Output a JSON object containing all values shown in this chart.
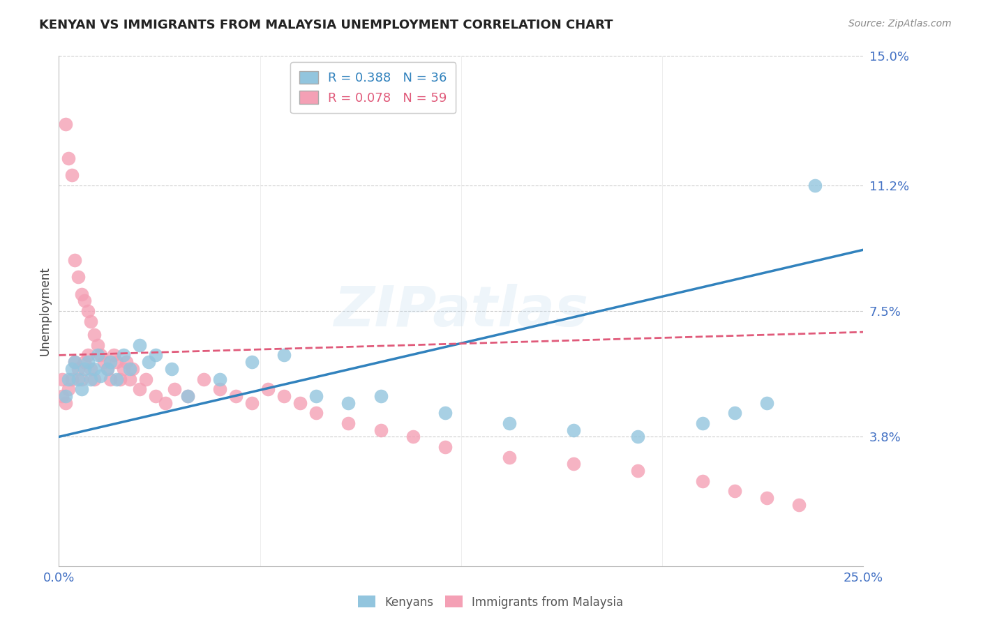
{
  "title": "KENYAN VS IMMIGRANTS FROM MALAYSIA UNEMPLOYMENT CORRELATION CHART",
  "source": "Source: ZipAtlas.com",
  "ylabel_label": "Unemployment",
  "x_min": 0.0,
  "x_max": 0.25,
  "y_min": 0.0,
  "y_max": 0.15,
  "ytick_labels": [
    "3.8%",
    "7.5%",
    "11.2%",
    "15.0%"
  ],
  "ytick_values": [
    0.038,
    0.075,
    0.112,
    0.15
  ],
  "kenyan_R": 0.388,
  "kenyan_N": 36,
  "malaysia_R": 0.078,
  "malaysia_N": 59,
  "kenyan_color": "#92c5de",
  "malaysia_color": "#f4a0b5",
  "kenyan_line_color": "#3182bd",
  "malaysia_line_color": "#e05a7a",
  "watermark": "ZIPatlas",
  "background_color": "#ffffff",
  "kenyan_x": [
    0.002,
    0.003,
    0.004,
    0.005,
    0.006,
    0.007,
    0.008,
    0.009,
    0.01,
    0.011,
    0.012,
    0.013,
    0.015,
    0.016,
    0.018,
    0.02,
    0.022,
    0.025,
    0.028,
    0.03,
    0.035,
    0.04,
    0.05,
    0.06,
    0.07,
    0.08,
    0.09,
    0.1,
    0.12,
    0.14,
    0.16,
    0.18,
    0.2,
    0.21,
    0.22,
    0.235
  ],
  "kenyan_y": [
    0.05,
    0.055,
    0.058,
    0.06,
    0.055,
    0.052,
    0.058,
    0.06,
    0.055,
    0.058,
    0.062,
    0.056,
    0.058,
    0.06,
    0.055,
    0.062,
    0.058,
    0.065,
    0.06,
    0.062,
    0.058,
    0.05,
    0.055,
    0.06,
    0.062,
    0.05,
    0.048,
    0.05,
    0.045,
    0.042,
    0.04,
    0.038,
    0.042,
    0.045,
    0.048,
    0.112
  ],
  "malaysia_x": [
    0.001,
    0.002,
    0.003,
    0.004,
    0.005,
    0.006,
    0.007,
    0.008,
    0.009,
    0.01,
    0.011,
    0.012,
    0.013,
    0.014,
    0.015,
    0.016,
    0.017,
    0.018,
    0.019,
    0.02,
    0.021,
    0.022,
    0.023,
    0.025,
    0.027,
    0.03,
    0.033,
    0.036,
    0.04,
    0.045,
    0.05,
    0.055,
    0.06,
    0.065,
    0.07,
    0.075,
    0.08,
    0.09,
    0.1,
    0.11,
    0.12,
    0.14,
    0.16,
    0.18,
    0.2,
    0.21,
    0.22,
    0.23,
    0.001,
    0.002,
    0.003,
    0.004,
    0.005,
    0.006,
    0.007,
    0.008,
    0.009,
    0.01,
    0.011
  ],
  "malaysia_y": [
    0.055,
    0.13,
    0.12,
    0.115,
    0.09,
    0.085,
    0.08,
    0.078,
    0.075,
    0.072,
    0.068,
    0.065,
    0.062,
    0.06,
    0.058,
    0.055,
    0.062,
    0.06,
    0.055,
    0.058,
    0.06,
    0.055,
    0.058,
    0.052,
    0.055,
    0.05,
    0.048,
    0.052,
    0.05,
    0.055,
    0.052,
    0.05,
    0.048,
    0.052,
    0.05,
    0.048,
    0.045,
    0.042,
    0.04,
    0.038,
    0.035,
    0.032,
    0.03,
    0.028,
    0.025,
    0.022,
    0.02,
    0.018,
    0.05,
    0.048,
    0.052,
    0.055,
    0.06,
    0.058,
    0.055,
    0.06,
    0.062,
    0.058,
    0.055
  ],
  "kenyan_line_intercept": 0.038,
  "kenyan_line_slope": 0.22,
  "malaysia_line_x0": 0.0,
  "malaysia_line_y0": 0.062,
  "malaysia_line_x1": 0.22,
  "malaysia_line_y1": 0.068
}
